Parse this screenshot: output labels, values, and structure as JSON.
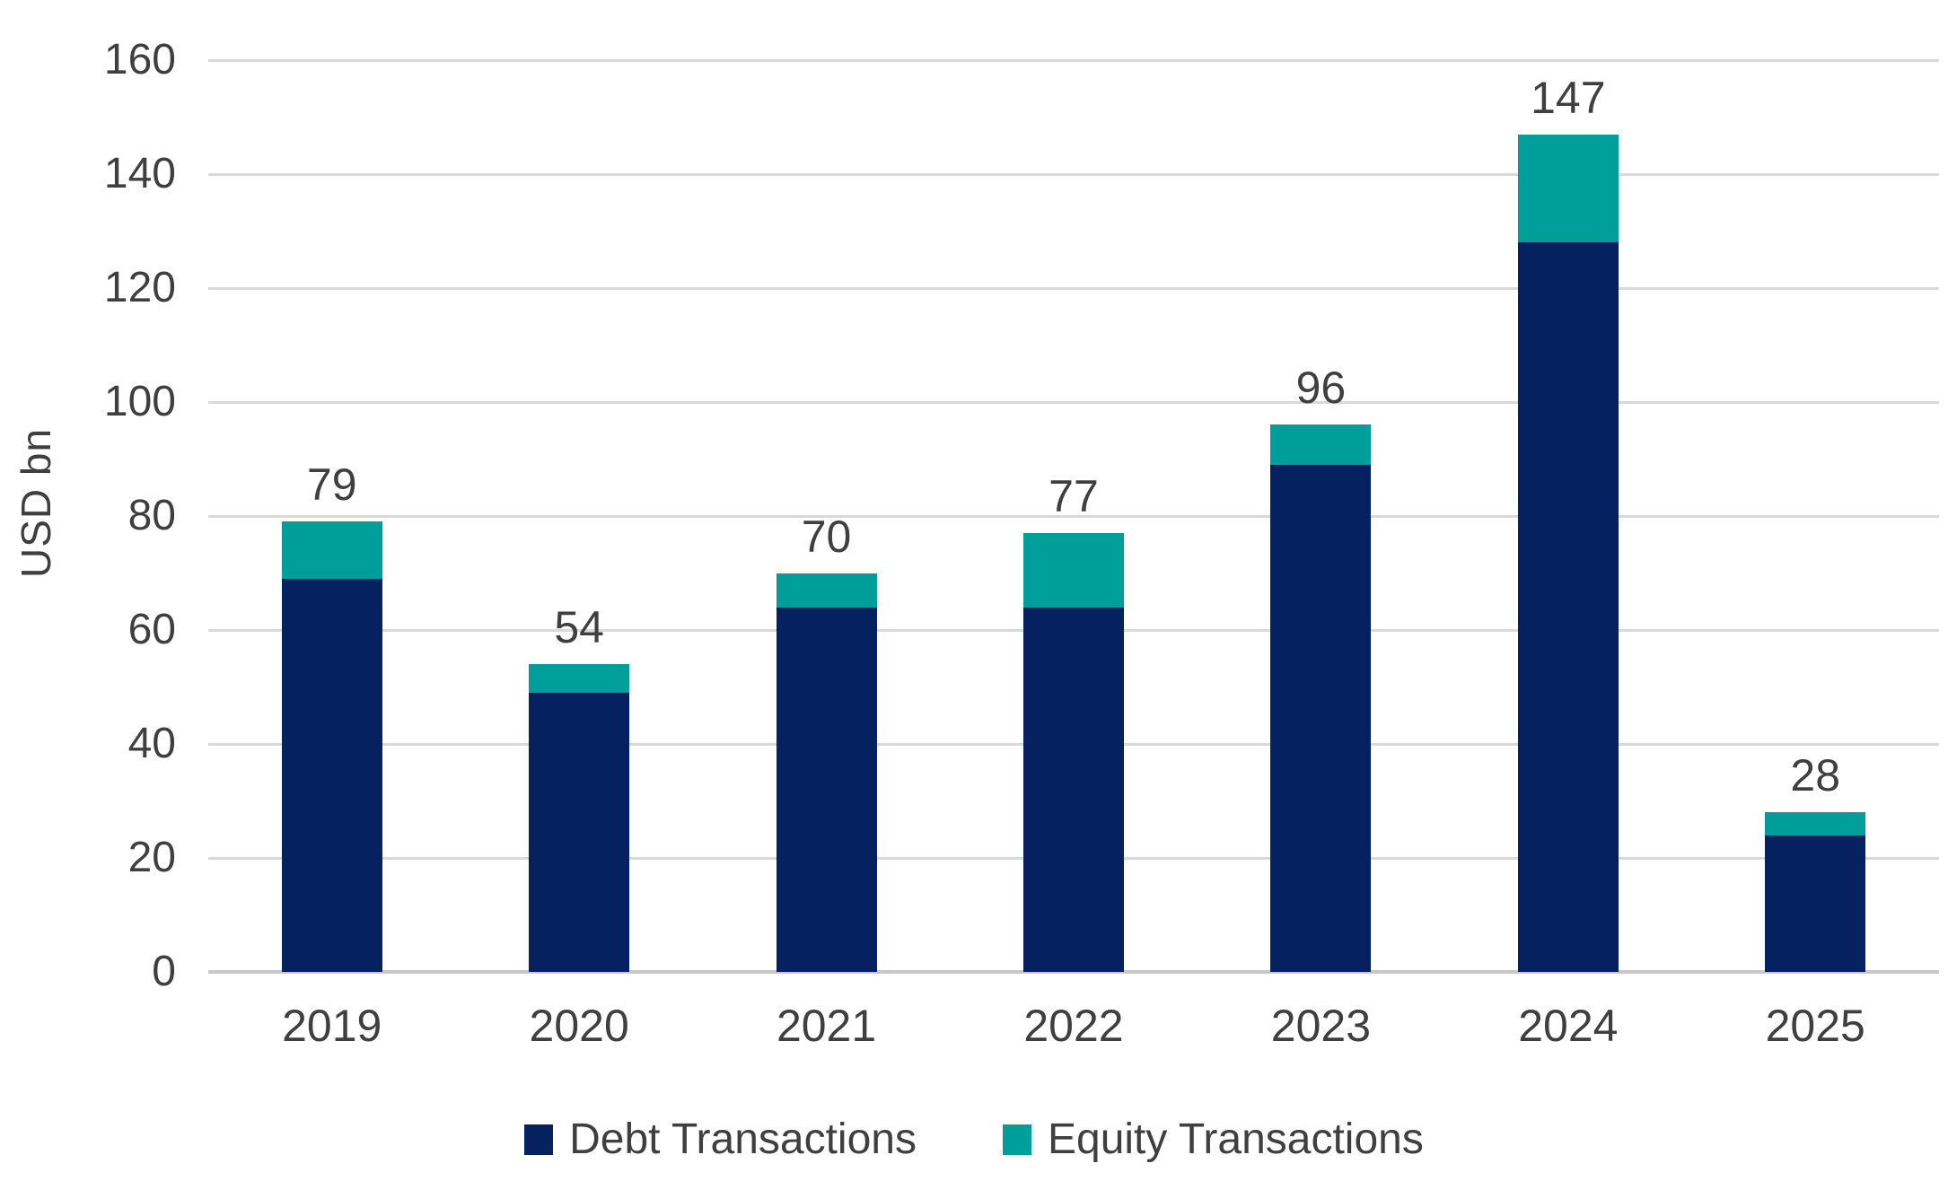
{
  "chart_data": {
    "type": "bar",
    "stacked": true,
    "title": "",
    "xlabel": "",
    "ylabel": "USD bn",
    "ylim": [
      0,
      160
    ],
    "yticks": [
      0,
      20,
      40,
      60,
      80,
      100,
      120,
      140,
      160
    ],
    "grid": true,
    "legend_position": "bottom",
    "categories": [
      "2019",
      "2020",
      "2021",
      "2022",
      "2023",
      "2024",
      "2025"
    ],
    "series": [
      {
        "name": "Debt Transactions",
        "color": "#062160",
        "values": [
          69,
          49,
          64,
          64,
          89,
          128,
          24
        ]
      },
      {
        "name": "Equity Transactions",
        "color": "#009e9b",
        "values": [
          10,
          5,
          6,
          13,
          7,
          19,
          4
        ]
      }
    ],
    "totals": [
      79,
      54,
      70,
      77,
      96,
      147,
      28
    ],
    "total_labels": [
      "79",
      "54",
      "70",
      "77",
      "96",
      "147",
      "28"
    ]
  },
  "colors": {
    "debt": "#062160",
    "equity": "#009e9b",
    "gridline": "#d9d9d9",
    "axis_line": "#c8c8c8",
    "text": "#3f3f3f",
    "background": "#ffffff"
  }
}
